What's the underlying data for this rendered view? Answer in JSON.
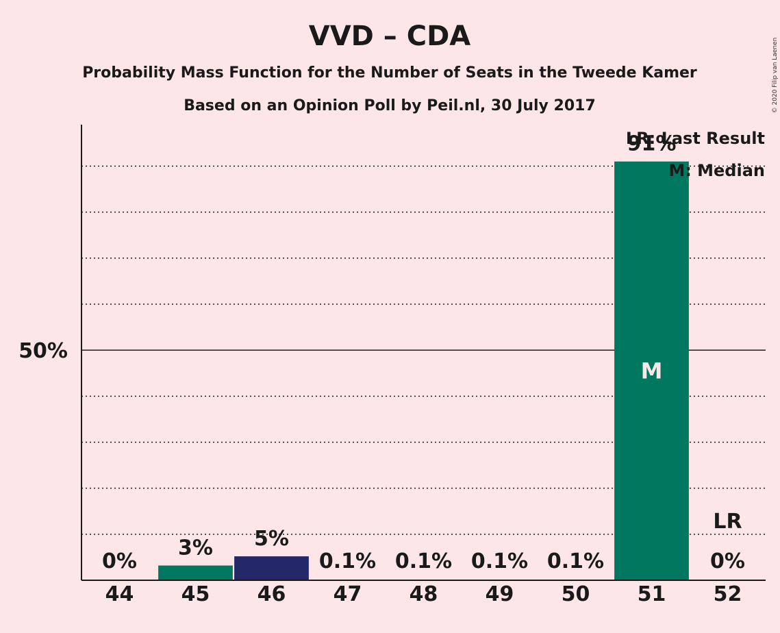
{
  "chart_data": {
    "type": "bar",
    "title": "VVD – CDA",
    "subtitle": "Probability Mass Function for the Number of Seats in the Tweede Kamer",
    "subtitle2": "Based on an Opinion Poll by Peil.nl, 30 July 2017",
    "copyright": "© 2020 Filip van Laenen",
    "categories": [
      "44",
      "45",
      "46",
      "47",
      "48",
      "49",
      "50",
      "51",
      "52"
    ],
    "values": [
      0,
      3.2,
      5.2,
      0.1,
      0.1,
      0.1,
      0.1,
      91,
      0
    ],
    "data_labels": [
      "0%",
      "3%",
      "5%",
      "0.1%",
      "0.1%",
      "0.1%",
      "0.1%",
      "91%",
      "0%"
    ],
    "bar_colors": [
      "#00785f",
      "#00785f",
      "#252868",
      "#00785f",
      "#00785f",
      "#00785f",
      "#00785f",
      "#00785f",
      "#00785f"
    ],
    "ylim": [
      0,
      99
    ],
    "y_ticks": [
      {
        "value": 50,
        "label": "50%"
      }
    ],
    "gridlines": [
      10,
      20,
      30,
      40,
      60,
      70,
      80,
      90
    ],
    "median_category": "51",
    "median_marker": "M",
    "last_result_category": "52",
    "last_result_marker": "LR",
    "legend": [
      "LR: Last Result",
      "M: Median"
    ],
    "legend_position": "top-right"
  }
}
